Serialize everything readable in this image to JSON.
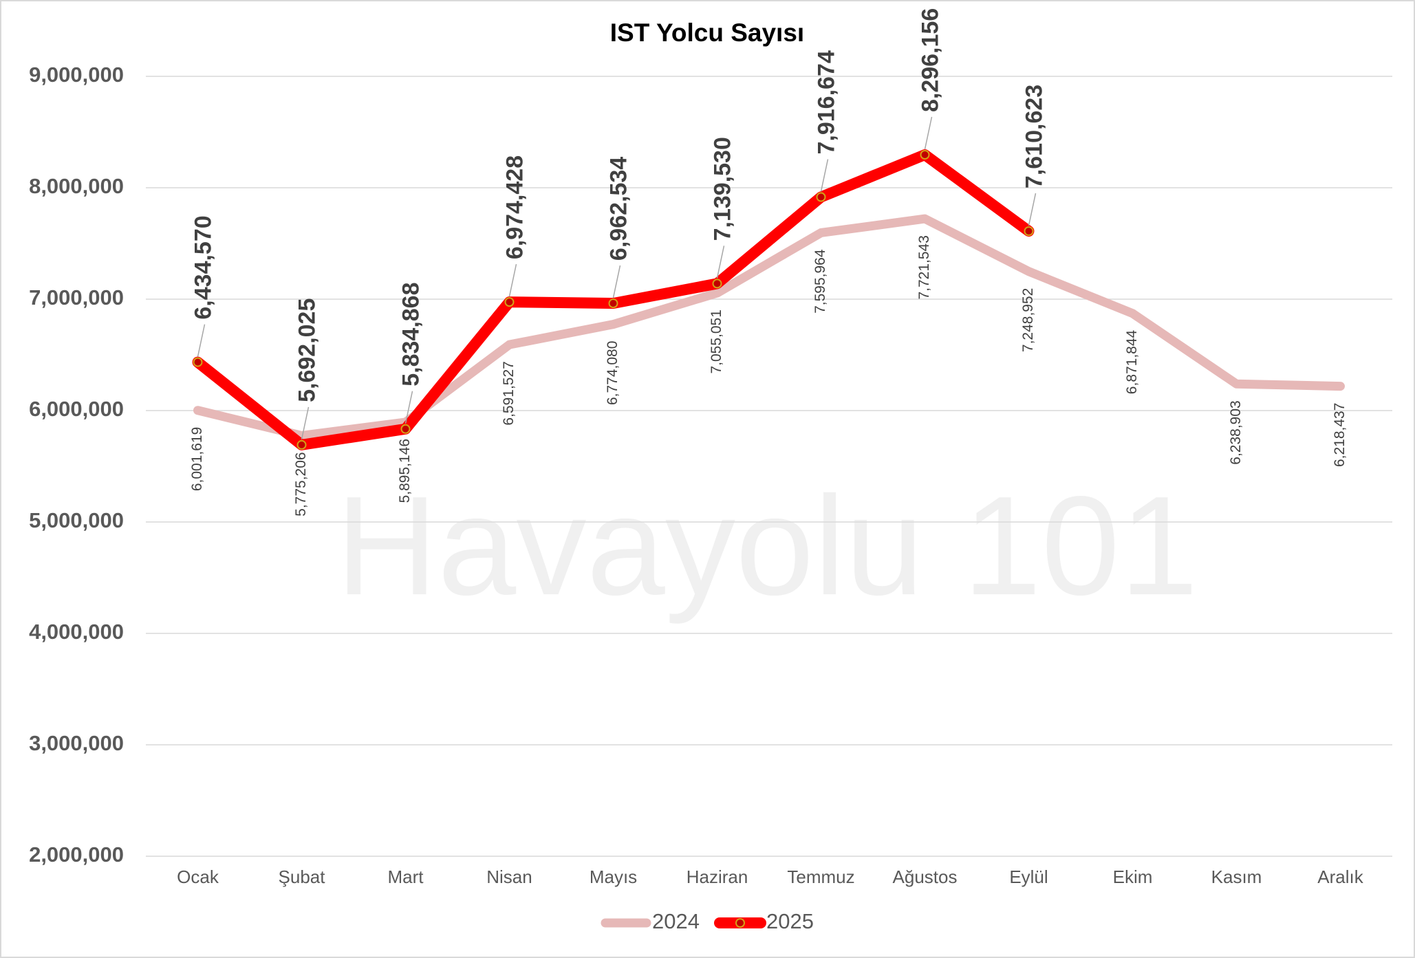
{
  "chart_data": {
    "type": "line",
    "title": "IST Yolcu Sayısı",
    "watermark": "Havayolu 101",
    "categories": [
      "Ocak",
      "Şubat",
      "Mart",
      "Nisan",
      "Mayıs",
      "Haziran",
      "Temmuz",
      "Ağustos",
      "Eylül",
      "Ekim",
      "Kasım",
      "Aralık"
    ],
    "series": [
      {
        "name": "2024",
        "color": "#e6b8b7",
        "values": [
          6001619,
          5775206,
          5895146,
          6591527,
          6774080,
          7055051,
          7595964,
          7721543,
          7248952,
          6871844,
          6238903,
          6218437
        ],
        "value_labels": [
          "6,001,619",
          "5,775,206",
          "5,895,146",
          "6,591,527",
          "6,774,080",
          "7,055,051",
          "7,595,964",
          "7,721,543",
          "7,248,952",
          "6,871,844",
          "6,238,903",
          "6,218,437"
        ]
      },
      {
        "name": "2025",
        "color": "#ff0000",
        "values": [
          6434570,
          5692025,
          5834868,
          6974428,
          6962534,
          7139530,
          7916674,
          8296156,
          7610623,
          null,
          null,
          null
        ],
        "value_labels": [
          "6,434,570",
          "5,692,025",
          "5,834,868",
          "6,974,428",
          "6,962,534",
          "7,139,530",
          "7,916,674",
          "8,296,156",
          "7,610,623",
          null,
          null,
          null
        ]
      }
    ],
    "ylim": [
      2000000,
      9000000
    ],
    "yticks": [
      {
        "value": 2000000,
        "label": "2,000,000"
      },
      {
        "value": 3000000,
        "label": "3,000,000"
      },
      {
        "value": 4000000,
        "label": "4,000,000"
      },
      {
        "value": 5000000,
        "label": "5,000,000"
      },
      {
        "value": 6000000,
        "label": "6,000,000"
      },
      {
        "value": 7000000,
        "label": "7,000,000"
      },
      {
        "value": 8000000,
        "label": "8,000,000"
      },
      {
        "value": 9000000,
        "label": "9,000,000"
      }
    ],
    "grid": true,
    "legend": "bottom"
  }
}
